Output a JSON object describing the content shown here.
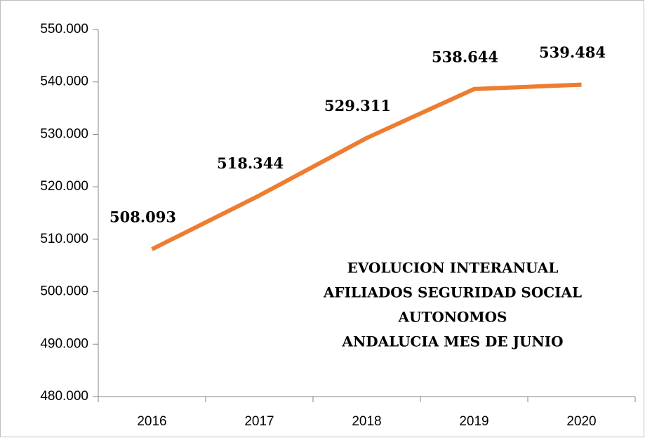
{
  "chart_data": {
    "type": "line",
    "title": [
      "EVOLUCION INTERANUAL",
      "AFILIADOS SEGURIDAD SOCIAL",
      "AUTONOMOS",
      "ANDALUCIA MES DE JUNIO"
    ],
    "categories": [
      "2016",
      "2017",
      "2018",
      "2019",
      "2020"
    ],
    "values": [
      508093,
      518344,
      529311,
      538644,
      539484
    ],
    "value_labels": [
      "508.093",
      "518.344",
      "529.311",
      "538.644",
      "539.484"
    ],
    "color": "#ed7d31",
    "ylim": [
      480000,
      550000
    ],
    "yticks": [
      {
        "value": 480000,
        "label": "480.000"
      },
      {
        "value": 490000,
        "label": "490.000"
      },
      {
        "value": 500000,
        "label": "500.000"
      },
      {
        "value": 510000,
        "label": "510.000"
      },
      {
        "value": 520000,
        "label": "520.000"
      },
      {
        "value": 530000,
        "label": "530.000"
      },
      {
        "value": 540000,
        "label": "540.000"
      },
      {
        "value": 550000,
        "label": "550.000"
      }
    ],
    "grid": false
  }
}
